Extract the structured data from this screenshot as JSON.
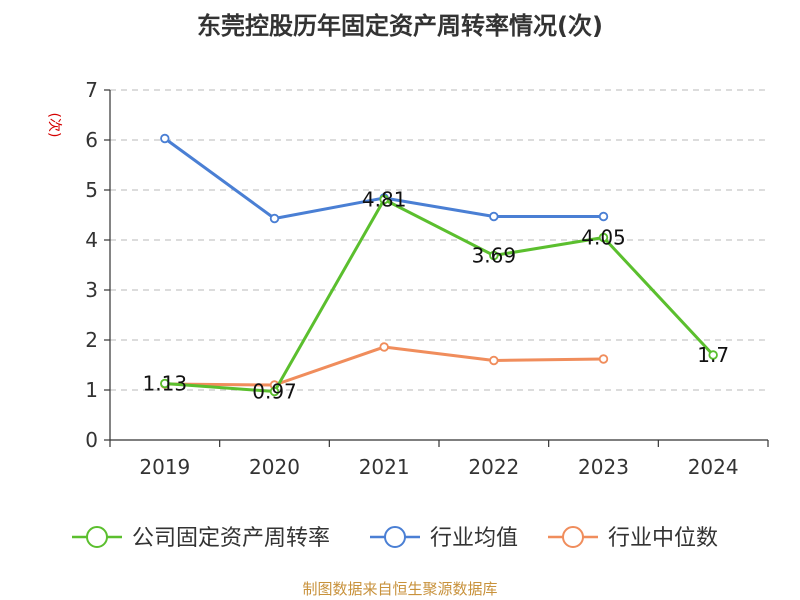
{
  "chart_data": {
    "type": "line",
    "title": "东莞控股历年固定资产周转率情况(次)",
    "ylabel": "(次)",
    "xlabel": "",
    "ylim": [
      0,
      7
    ],
    "yticks": [
      0,
      1,
      2,
      3,
      4,
      5,
      6,
      7
    ],
    "grid": true,
    "legend_position": "bottom",
    "categories": [
      "2019",
      "2020",
      "2021",
      "2022",
      "2023",
      "2024"
    ],
    "series": [
      {
        "name": "公司固定资产周转率",
        "color": "#5bbf2e",
        "values": [
          1.13,
          0.97,
          4.81,
          3.69,
          4.05,
          1.7
        ],
        "labels": [
          "1.13",
          "0.97",
          "4.81",
          "3.69",
          "4.05",
          "1.7"
        ],
        "show_labels": true
      },
      {
        "name": "行业均值",
        "color": "#4a7fd4",
        "values": [
          6.03,
          4.43,
          4.84,
          4.47,
          4.47,
          null
        ],
        "show_labels": false
      },
      {
        "name": "行业中位数",
        "color": "#f08d5c",
        "values": [
          1.12,
          1.1,
          1.86,
          1.59,
          1.62,
          null
        ],
        "show_labels": false
      }
    ]
  },
  "source": "制图数据来自恒生聚源数据库"
}
